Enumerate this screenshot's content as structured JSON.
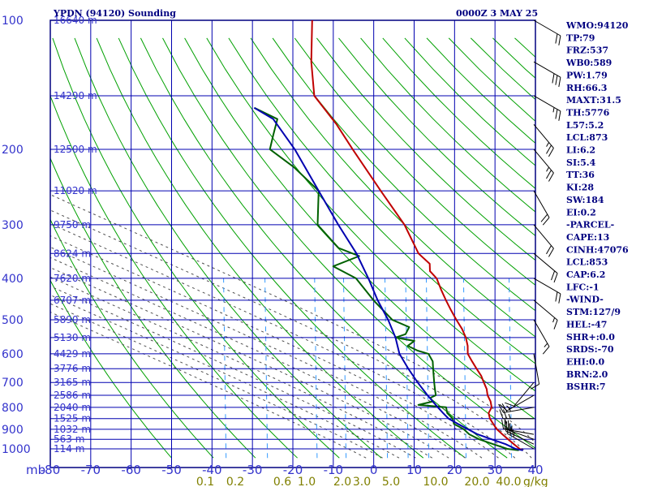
{
  "chart_data": {
    "type": "line",
    "title": "YPDN (94120) Sounding",
    "time": "0000Z  3 MAY 25",
    "pressure_levels": [
      100,
      200,
      300,
      400,
      500,
      600,
      700,
      800,
      900,
      1000
    ],
    "pressure_labels": [
      "100",
      "200",
      "300",
      "400",
      "500",
      "600",
      "700",
      "800",
      "900",
      "1000"
    ],
    "pressure_unit": "mb",
    "temperature_ticks": [
      -80,
      -70,
      -60,
      -50,
      -40,
      -30,
      -20,
      -10,
      0,
      10,
      20,
      30,
      40
    ],
    "temperature_labels": [
      "-80",
      "-70",
      "-60",
      "-50",
      "-40",
      "-30",
      "-20",
      "-10",
      "0",
      "10",
      "20",
      "30",
      "40"
    ],
    "mixing_ratio_labels": [
      "0.1",
      "0.2",
      "0.6",
      "1.0",
      "2.0",
      "3.0",
      "5.0",
      "10.0",
      "20.0",
      "40.0"
    ],
    "mixing_ratio_unit": "g/kg",
    "height_labels": [
      {
        "p": 100,
        "label": "16640 m"
      },
      {
        "p": 150,
        "label": "14290 m"
      },
      {
        "p": 200,
        "label": "12500 m"
      },
      {
        "p": 250,
        "label": "11020 m"
      },
      {
        "p": 300,
        "label": "9750 m"
      },
      {
        "p": 350,
        "label": "8624 m"
      },
      {
        "p": 400,
        "label": "7620 m"
      },
      {
        "p": 450,
        "label": "6707 m"
      },
      {
        "p": 500,
        "label": "5890 m"
      },
      {
        "p": 550,
        "label": "5130 m"
      },
      {
        "p": 600,
        "label": "4429 m"
      },
      {
        "p": 650,
        "label": "3776 m"
      },
      {
        "p": 700,
        "label": "3165 m"
      },
      {
        "p": 750,
        "label": "2586 m"
      },
      {
        "p": 800,
        "label": "2040 m"
      },
      {
        "p": 850,
        "label": "1525 m"
      },
      {
        "p": 900,
        "label": "1032 m"
      },
      {
        "p": 950,
        "label": "563 m"
      },
      {
        "p": 1000,
        "label": "114 m"
      }
    ],
    "series": [
      {
        "name": "",
        "color": "#c00000",
        "points": [
          [
            1008,
            27
          ],
          [
            1000,
            26
          ],
          [
            975,
            24
          ],
          [
            950,
            22
          ],
          [
            925,
            20
          ],
          [
            900,
            18
          ],
          [
            875,
            16.5
          ],
          [
            850,
            15
          ],
          [
            825,
            14
          ],
          [
            800,
            14
          ],
          [
            775,
            13
          ],
          [
            750,
            11.5
          ],
          [
            725,
            10.5
          ],
          [
            700,
            9
          ],
          [
            675,
            7.5
          ],
          [
            650,
            5.5
          ],
          [
            625,
            3.5
          ],
          [
            600,
            1.5
          ],
          [
            575,
            0.5
          ],
          [
            550,
            -1
          ],
          [
            525,
            -3
          ],
          [
            500,
            -5.5
          ],
          [
            475,
            -8
          ],
          [
            450,
            -10.5
          ],
          [
            425,
            -13
          ],
          [
            400,
            -15.5
          ],
          [
            385,
            -18
          ],
          [
            370,
            -19
          ],
          [
            350,
            -23
          ],
          [
            300,
            -30
          ],
          [
            250,
            -40
          ],
          [
            200,
            -52
          ],
          [
            175,
            -59
          ],
          [
            150,
            -68
          ],
          [
            125,
            -73
          ],
          [
            100,
            -78
          ]
        ]
      },
      {
        "name": "",
        "color": "#006000",
        "points": [
          [
            1008,
            26
          ],
          [
            1000,
            23
          ],
          [
            975,
            19
          ],
          [
            950,
            15
          ],
          [
            925,
            12
          ],
          [
            900,
            10
          ],
          [
            875,
            7
          ],
          [
            850,
            6
          ],
          [
            825,
            4
          ],
          [
            800,
            3
          ],
          [
            790,
            -4
          ],
          [
            775,
            -1
          ],
          [
            760,
            -2
          ],
          [
            750,
            -1
          ],
          [
            725,
            -2
          ],
          [
            700,
            -3
          ],
          [
            650,
            -5
          ],
          [
            625,
            -6
          ],
          [
            600,
            -8
          ],
          [
            590,
            -11
          ],
          [
            575,
            -14
          ],
          [
            560,
            -13
          ],
          [
            550,
            -18
          ],
          [
            540,
            -16
          ],
          [
            520,
            -16
          ],
          [
            500,
            -21
          ],
          [
            450,
            -28
          ],
          [
            400,
            -35
          ],
          [
            375,
            -42
          ],
          [
            355,
            -37
          ],
          [
            340,
            -43
          ],
          [
            300,
            -51
          ],
          [
            250,
            -55
          ],
          [
            220,
            -64
          ],
          [
            200,
            -72
          ],
          [
            185,
            -73
          ],
          [
            170,
            -74
          ],
          [
            160,
            -81
          ]
        ]
      },
      {
        "name": "",
        "color": "#0000b0",
        "points": [
          [
            1008,
            27
          ],
          [
            1000,
            25
          ],
          [
            975,
            22
          ],
          [
            950,
            18
          ],
          [
            925,
            14
          ],
          [
            900,
            11
          ],
          [
            875,
            8
          ],
          [
            850,
            5
          ],
          [
            825,
            3
          ],
          [
            800,
            1
          ],
          [
            750,
            -3
          ],
          [
            700,
            -7
          ],
          [
            650,
            -11
          ],
          [
            600,
            -15
          ],
          [
            550,
            -18
          ],
          [
            500,
            -22
          ],
          [
            450,
            -27
          ],
          [
            400,
            -32
          ],
          [
            350,
            -38
          ],
          [
            300,
            -46
          ],
          [
            250,
            -55
          ],
          [
            200,
            -66
          ],
          [
            170,
            -75
          ],
          [
            160,
            -81
          ]
        ]
      }
    ],
    "wind_barbs": [
      {
        "p": 1000,
        "dir": 120,
        "kt": 25
      },
      {
        "p": 975,
        "dir": 115,
        "kt": 25
      },
      {
        "p": 950,
        "dir": 110,
        "kt": 25
      },
      {
        "p": 925,
        "dir": 100,
        "kt": 25
      },
      {
        "p": 850,
        "dir": 90,
        "kt": 25
      },
      {
        "p": 800,
        "dir": 80,
        "kt": 25
      },
      {
        "p": 750,
        "dir": 60,
        "kt": 15
      },
      {
        "p": 700,
        "dir": 40,
        "kt": 10
      },
      {
        "p": 600,
        "dir": 350,
        "kt": 10
      },
      {
        "p": 500,
        "dir": 330,
        "kt": 15
      },
      {
        "p": 450,
        "dir": 310,
        "kt": 15
      },
      {
        "p": 400,
        "dir": 300,
        "kt": 20
      },
      {
        "p": 350,
        "dir": 310,
        "kt": 20
      },
      {
        "p": 300,
        "dir": 320,
        "kt": 20
      },
      {
        "p": 250,
        "dir": 330,
        "kt": 20
      },
      {
        "p": 200,
        "dir": 320,
        "kt": 25
      },
      {
        "p": 175,
        "dir": 320,
        "kt": 25
      },
      {
        "p": 150,
        "dir": 300,
        "kt": 25
      },
      {
        "p": 125,
        "dir": 300,
        "kt": 30
      },
      {
        "p": 100,
        "dir": 300,
        "kt": 20
      }
    ],
    "side_indices": [
      "WMO:94120",
      "TP:79",
      "FRZ:537",
      "WB0:589",
      "PW:1.79",
      "RH:66.3",
      "MAXT:31.5",
      "TH:5776",
      "L57:5.2",
      "LCL:873",
      "LI:6.2",
      "SI:5.4",
      "TT:36",
      "KI:28",
      "SW:184",
      "EI:0.2",
      "-PARCEL-",
      "CAPE:13",
      "CINH:47076",
      "LCL:853",
      "CAP:6.2",
      "LFC:-1",
      "-WIND-",
      "STM:127/9",
      "HEL:-47",
      "SHR+:0.0",
      "SRDS:-70",
      "EHI:0.0",
      "BRN:2.0",
      "BSHR:7"
    ],
    "colors": {
      "frame": "#000080",
      "grid": "#0000b0",
      "dry_adiabat": "#00a000",
      "moist_adiabat": "#505050",
      "mixing_ratio": "#3399ff",
      "temperature": "#c00000",
      "dewpoint": "#006000",
      "parcel": "#0000b0"
    }
  }
}
